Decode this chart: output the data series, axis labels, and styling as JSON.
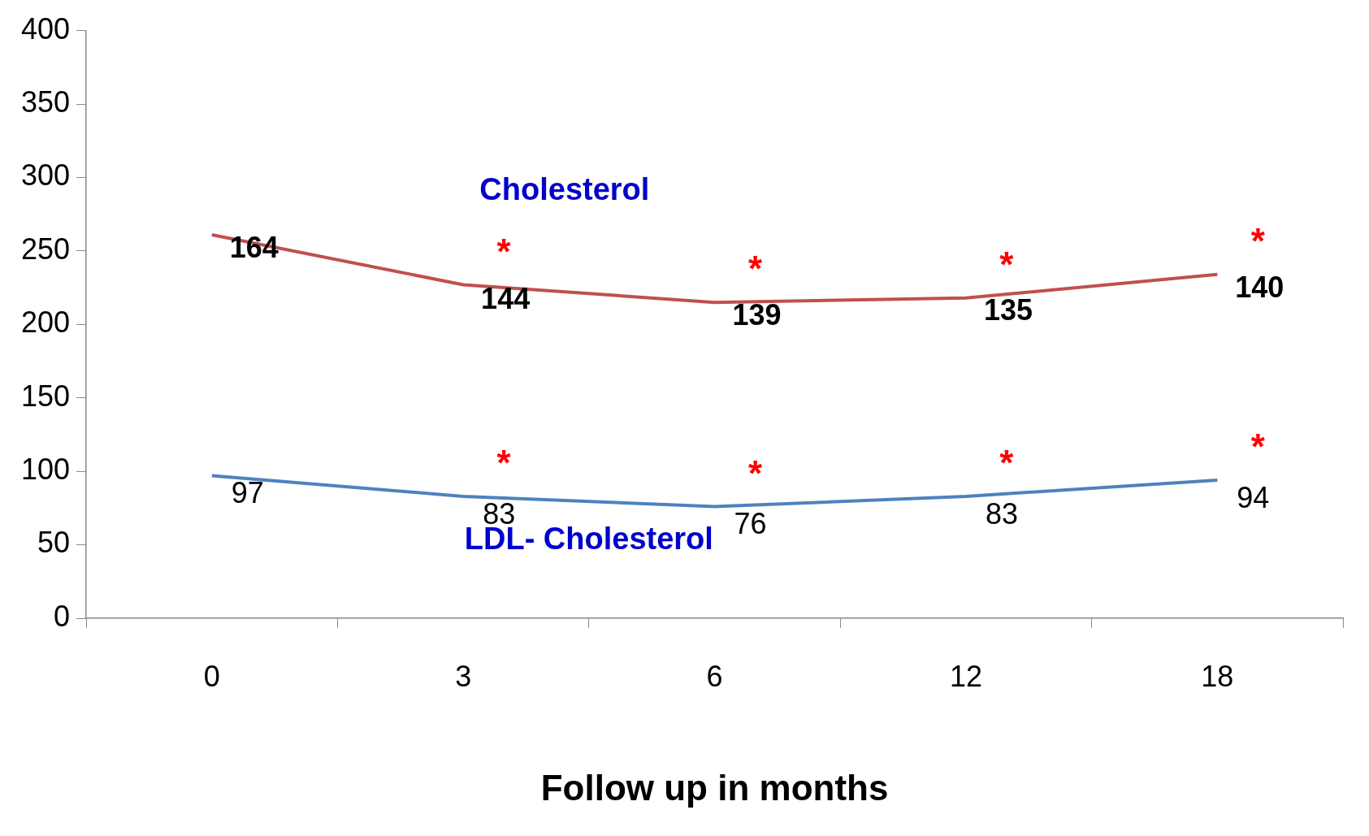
{
  "chart_data": {
    "type": "line",
    "xlabel": "Follow up in months",
    "categories": [
      "0",
      "3",
      "6",
      "12",
      "18"
    ],
    "ylim": [
      0,
      400
    ],
    "yticks": [
      0,
      50,
      100,
      150,
      200,
      250,
      300,
      350,
      400
    ],
    "grid": false,
    "legend": false,
    "marker": "none",
    "series": [
      {
        "name": "Cholesterol",
        "color": "#c0504d",
        "values": [
          261,
          227,
          215,
          218,
          234
        ]
      },
      {
        "name": "LDL- Cholesterol",
        "color": "#4f81bd",
        "values": [
          97,
          83,
          76,
          83,
          94
        ],
        "value_labels": [
          "97",
          "83",
          "76",
          "83",
          "94"
        ]
      }
    ],
    "annotations": [
      {
        "text": "164",
        "x": "0",
        "y": 260
      },
      {
        "text": "144",
        "x": "3",
        "y": 225
      },
      {
        "text": "139",
        "x": "6",
        "y": 214
      },
      {
        "text": "135",
        "x": "12",
        "y": 217
      },
      {
        "text": "140",
        "x": "18",
        "y": 233
      },
      "*",
      "*",
      "*",
      "*",
      "*",
      "*",
      "*",
      "*"
    ]
  }
}
